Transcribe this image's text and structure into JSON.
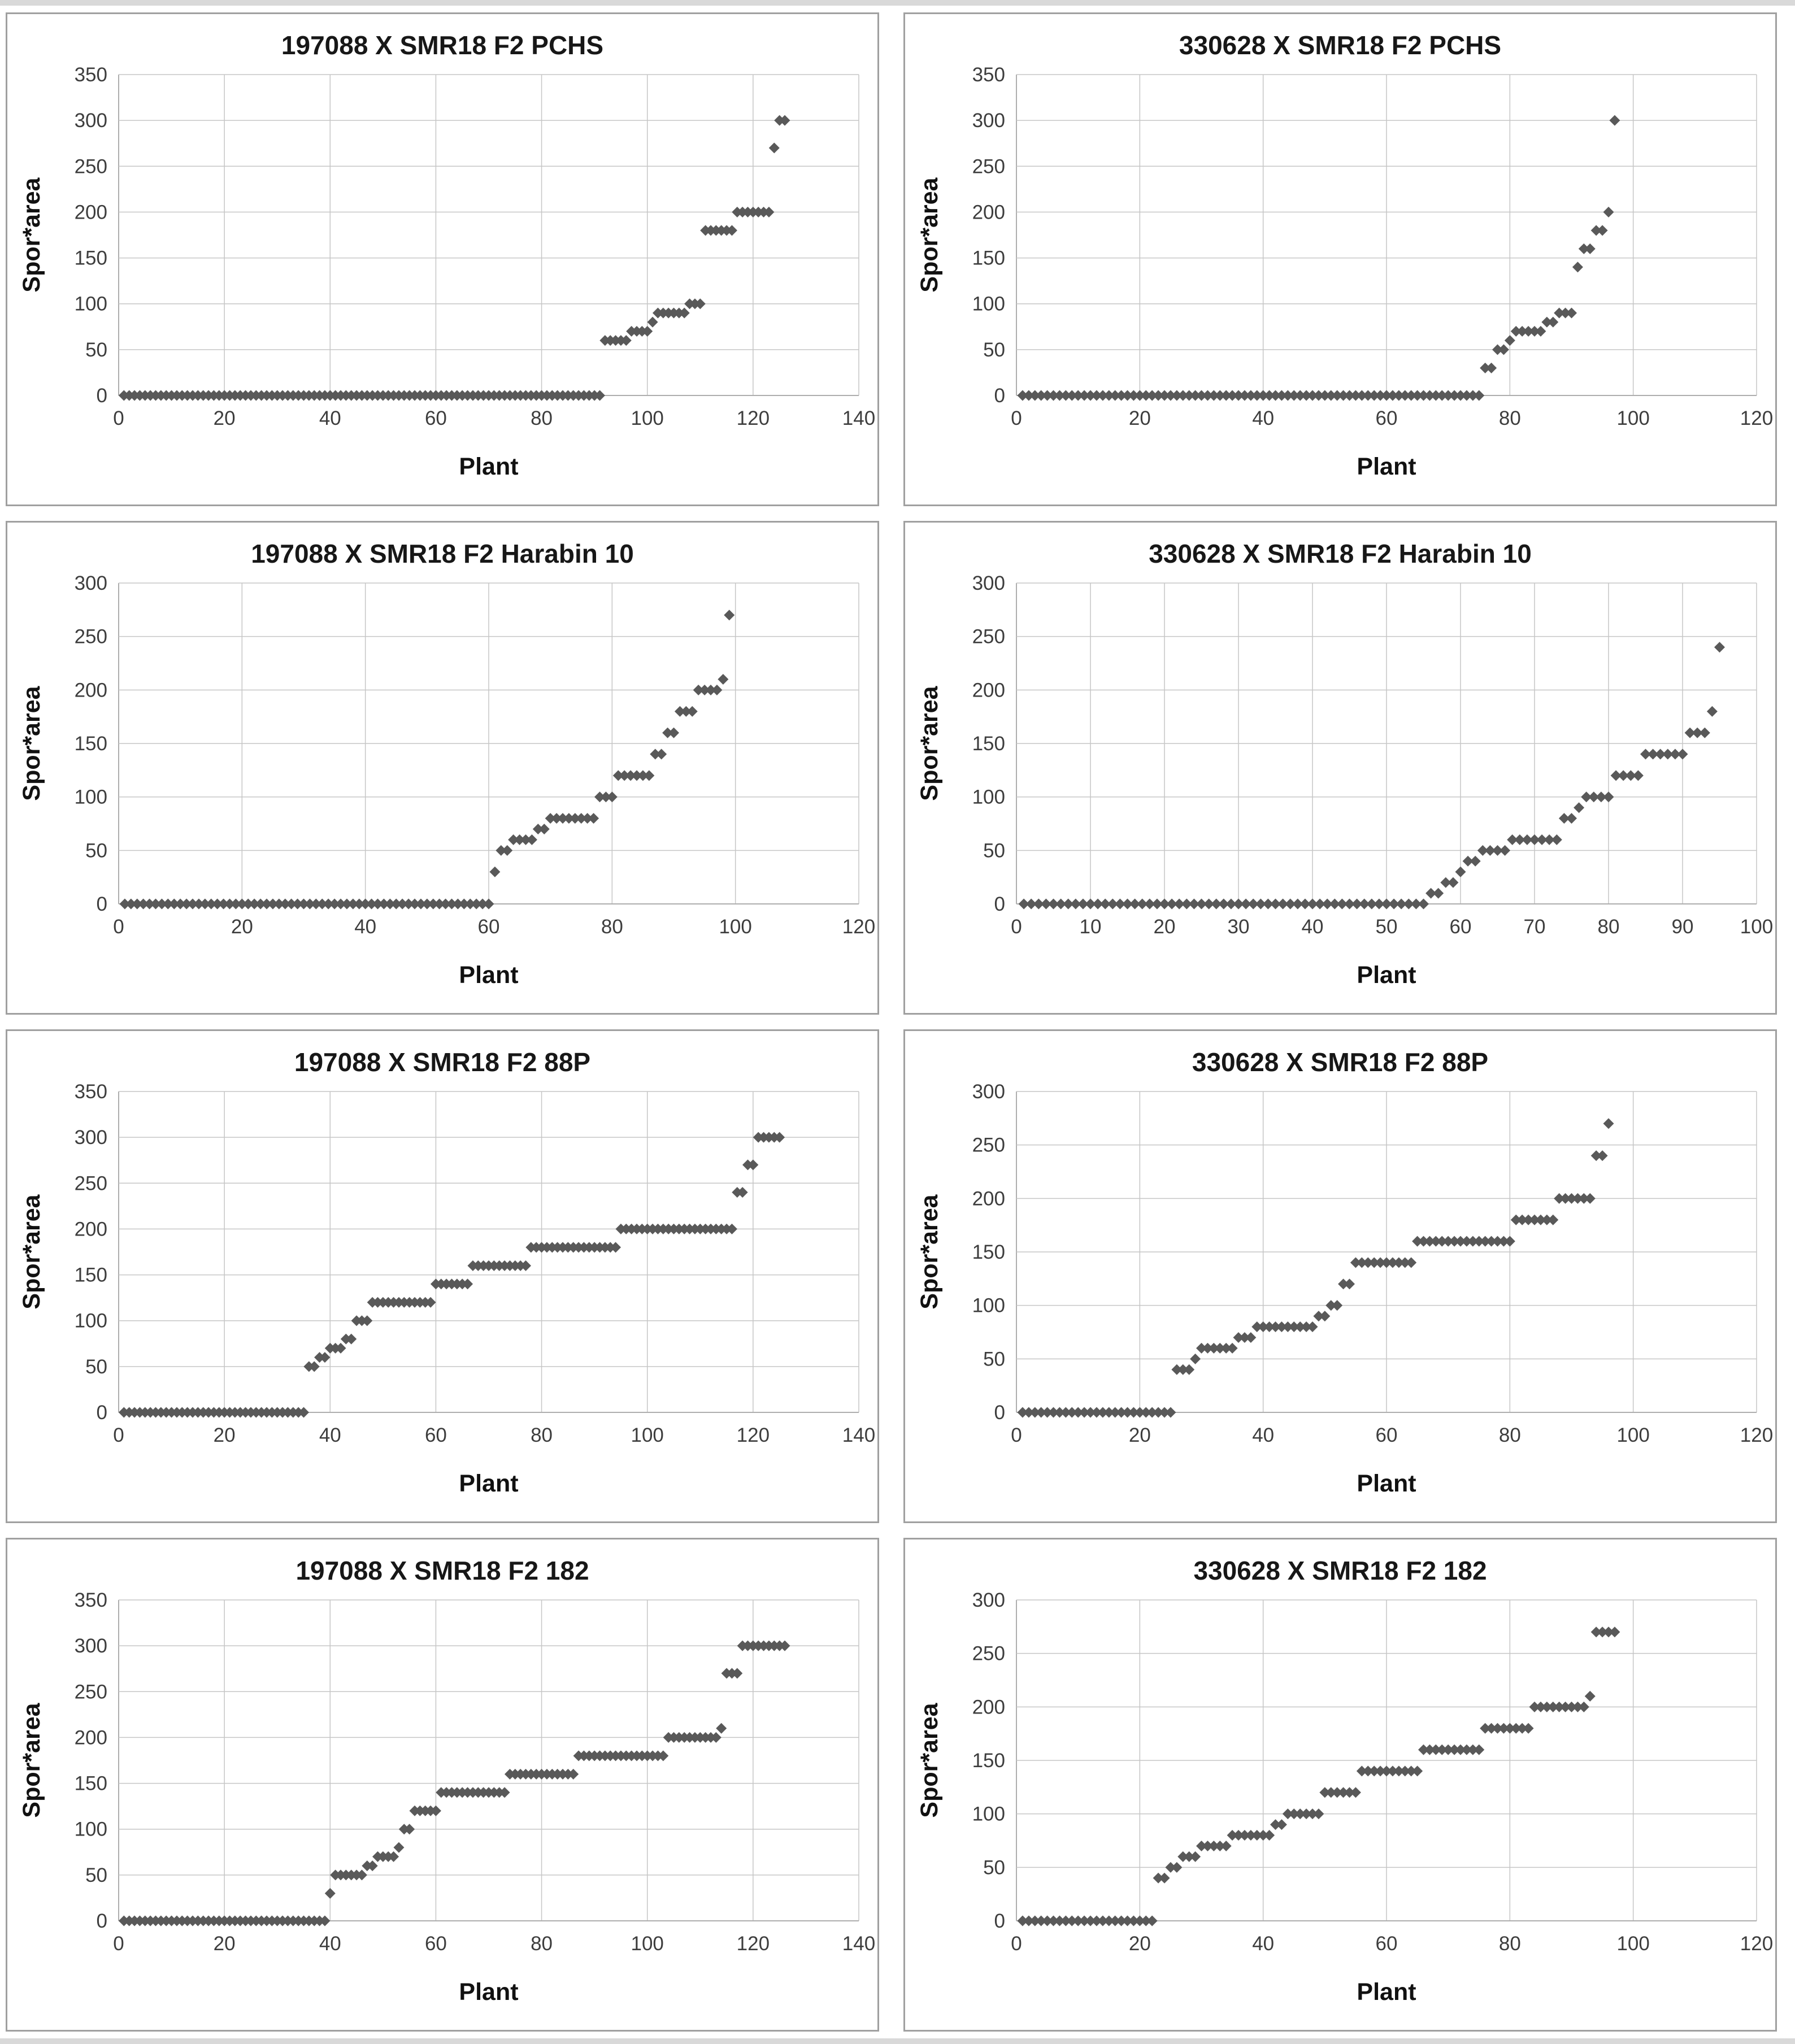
{
  "page": {
    "description": "Grid of eight sorted scatter plots of sporulation area per plant for F2 populations",
    "edge_strip_color": "#d9d9d9",
    "panel_border_color": "#a0a0a0",
    "background_color": "#ffffff"
  },
  "styles": {
    "marker_color": "#595959",
    "grid_color": "#c6c6c6",
    "axis_color": "#aeaeae",
    "tick_text_color": "#3d3d3d",
    "title_color": "#171717"
  },
  "chart_data": [
    {
      "type": "scatter",
      "title": "197088 X SMR18 F2 PCHS",
      "xlabel": "Plant",
      "ylabel": "Spor*area",
      "xlim": [
        0,
        140
      ],
      "xtick_step": 20,
      "ylim": [
        0,
        350
      ],
      "ytick_step": 50,
      "grid": true,
      "legend": "none",
      "marker": "diamond",
      "x_values_note": "plant index 1..N in order; runs are [y_value, count]",
      "runs": [
        [
          0,
          91
        ],
        [
          60,
          5
        ],
        [
          70,
          4
        ],
        [
          80,
          1
        ],
        [
          90,
          6
        ],
        [
          100,
          3
        ],
        [
          180,
          6
        ],
        [
          200,
          7
        ],
        [
          270,
          1
        ],
        [
          300,
          2
        ]
      ]
    },
    {
      "type": "scatter",
      "title": "330628 X SMR18 F2 PCHS",
      "xlabel": "Plant",
      "ylabel": "Spor*area",
      "xlim": [
        0,
        120
      ],
      "xtick_step": 20,
      "ylim": [
        0,
        350
      ],
      "ytick_step": 50,
      "grid": true,
      "legend": "none",
      "marker": "diamond",
      "runs": [
        [
          0,
          75
        ],
        [
          30,
          2
        ],
        [
          50,
          2
        ],
        [
          60,
          1
        ],
        [
          70,
          5
        ],
        [
          80,
          2
        ],
        [
          90,
          3
        ],
        [
          140,
          1
        ],
        [
          160,
          2
        ],
        [
          180,
          2
        ],
        [
          200,
          1
        ],
        [
          300,
          1
        ]
      ]
    },
    {
      "type": "scatter",
      "title": "197088 X SMR18 F2 Harabin 10",
      "xlabel": "Plant",
      "ylabel": "Spor*area",
      "xlim": [
        0,
        120
      ],
      "xtick_step": 20,
      "ylim": [
        0,
        300
      ],
      "ytick_step": 50,
      "grid": true,
      "legend": "none",
      "marker": "diamond",
      "runs": [
        [
          0,
          60
        ],
        [
          30,
          1
        ],
        [
          50,
          2
        ],
        [
          60,
          4
        ],
        [
          70,
          2
        ],
        [
          80,
          8
        ],
        [
          100,
          3
        ],
        [
          120,
          6
        ],
        [
          140,
          2
        ],
        [
          160,
          2
        ],
        [
          180,
          3
        ],
        [
          200,
          4
        ],
        [
          210,
          1
        ],
        [
          270,
          1
        ]
      ]
    },
    {
      "type": "scatter",
      "title": "330628 X SMR18 F2 Harabin 10",
      "xlabel": "Plant",
      "ylabel": "Spor*area",
      "xlim": [
        0,
        100
      ],
      "xtick_step": 10,
      "ylim": [
        0,
        300
      ],
      "ytick_step": 50,
      "grid": true,
      "legend": "none",
      "marker": "diamond",
      "runs": [
        [
          0,
          55
        ],
        [
          10,
          2
        ],
        [
          20,
          2
        ],
        [
          30,
          1
        ],
        [
          40,
          2
        ],
        [
          50,
          4
        ],
        [
          60,
          7
        ],
        [
          80,
          2
        ],
        [
          90,
          1
        ],
        [
          100,
          4
        ],
        [
          120,
          4
        ],
        [
          140,
          6
        ],
        [
          160,
          3
        ],
        [
          180,
          1
        ],
        [
          240,
          1
        ]
      ]
    },
    {
      "type": "scatter",
      "title": "197088 X SMR18 F2 88P",
      "xlabel": "Plant",
      "ylabel": "Spor*area",
      "xlim": [
        0,
        140
      ],
      "xtick_step": 20,
      "ylim": [
        0,
        350
      ],
      "ytick_step": 50,
      "grid": true,
      "legend": "none",
      "marker": "diamond",
      "runs": [
        [
          0,
          35
        ],
        [
          50,
          2
        ],
        [
          60,
          2
        ],
        [
          70,
          3
        ],
        [
          80,
          2
        ],
        [
          100,
          3
        ],
        [
          120,
          12
        ],
        [
          140,
          7
        ],
        [
          160,
          11
        ],
        [
          180,
          17
        ],
        [
          200,
          22
        ],
        [
          240,
          2
        ],
        [
          270,
          2
        ],
        [
          300,
          5
        ]
      ]
    },
    {
      "type": "scatter",
      "title": "330628 X SMR18 F2 88P",
      "xlabel": "Plant",
      "ylabel": "Spor*area",
      "xlim": [
        0,
        120
      ],
      "xtick_step": 20,
      "ylim": [
        0,
        300
      ],
      "ytick_step": 50,
      "grid": true,
      "legend": "none",
      "marker": "diamond",
      "runs": [
        [
          0,
          25
        ],
        [
          40,
          3
        ],
        [
          50,
          1
        ],
        [
          60,
          6
        ],
        [
          70,
          3
        ],
        [
          80,
          10
        ],
        [
          90,
          2
        ],
        [
          100,
          2
        ],
        [
          120,
          2
        ],
        [
          140,
          10
        ],
        [
          160,
          16
        ],
        [
          180,
          7
        ],
        [
          200,
          6
        ],
        [
          240,
          2
        ],
        [
          270,
          1
        ]
      ]
    },
    {
      "type": "scatter",
      "title": "197088 X SMR18 F2 182",
      "xlabel": "Plant",
      "ylabel": "Spor*area",
      "xlim": [
        0,
        140
      ],
      "xtick_step": 20,
      "ylim": [
        0,
        350
      ],
      "ytick_step": 50,
      "grid": true,
      "legend": "none",
      "marker": "diamond",
      "runs": [
        [
          0,
          39
        ],
        [
          30,
          1
        ],
        [
          50,
          6
        ],
        [
          60,
          2
        ],
        [
          70,
          4
        ],
        [
          80,
          1
        ],
        [
          100,
          2
        ],
        [
          120,
          5
        ],
        [
          140,
          13
        ],
        [
          160,
          13
        ],
        [
          180,
          17
        ],
        [
          200,
          10
        ],
        [
          210,
          1
        ],
        [
          270,
          3
        ],
        [
          300,
          9
        ]
      ]
    },
    {
      "type": "scatter",
      "title": "330628 X SMR18 F2 182",
      "xlabel": "Plant",
      "ylabel": "Spor*area",
      "xlim": [
        0,
        120
      ],
      "xtick_step": 20,
      "ylim": [
        0,
        300
      ],
      "ytick_step": 50,
      "grid": true,
      "legend": "none",
      "marker": "diamond",
      "runs": [
        [
          0,
          22
        ],
        [
          40,
          2
        ],
        [
          50,
          2
        ],
        [
          60,
          3
        ],
        [
          70,
          5
        ],
        [
          80,
          7
        ],
        [
          90,
          2
        ],
        [
          100,
          6
        ],
        [
          120,
          6
        ],
        [
          140,
          10
        ],
        [
          160,
          10
        ],
        [
          180,
          8
        ],
        [
          200,
          9
        ],
        [
          210,
          1
        ],
        [
          270,
          4
        ]
      ]
    }
  ]
}
